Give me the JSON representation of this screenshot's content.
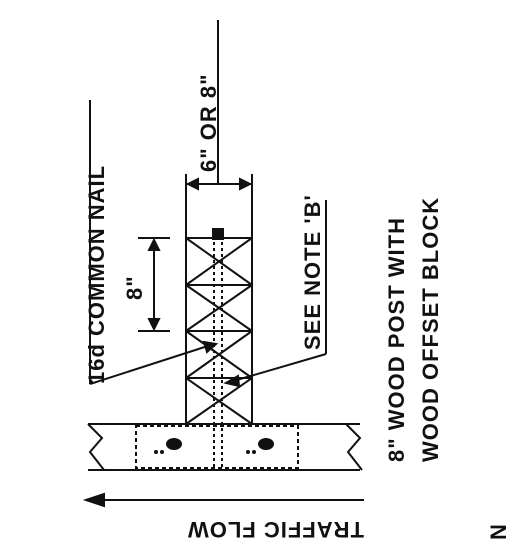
{
  "labels": {
    "spacing": "6\" OR 8\"",
    "nail": "16d COMMON NAIL",
    "note": "SEE NOTE 'B'",
    "post_width": "8\"",
    "post_line1": "8\" WOOD POST WITH",
    "post_line2": "WOOD OFFSET BLOCK",
    "traffic": "TRAFFIC FLOW",
    "corner_glyph": "N"
  },
  "colors": {
    "ink": "#111111",
    "background": "#ffffff"
  }
}
